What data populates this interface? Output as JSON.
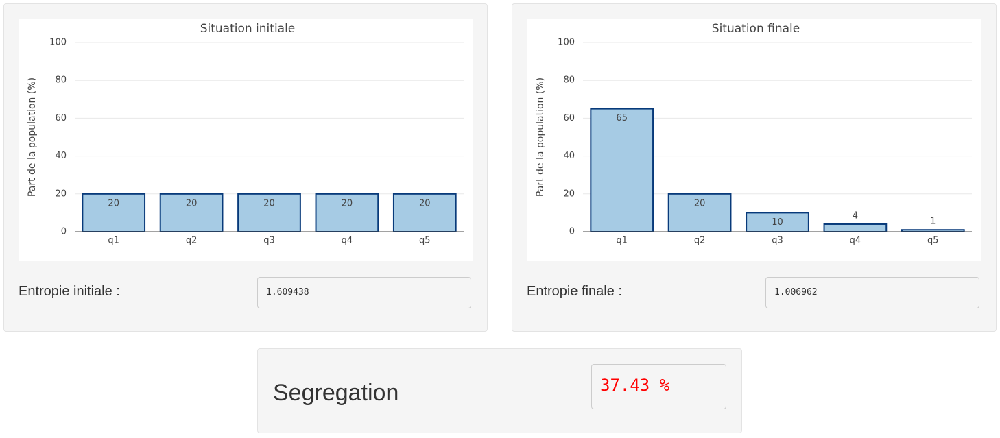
{
  "chart_data": [
    {
      "type": "bar",
      "title": "Situation initiale",
      "ylabel": "Part de la population (%)",
      "xlabel": "",
      "categories": [
        "q1",
        "q2",
        "q3",
        "q4",
        "q5"
      ],
      "values": [
        20,
        20,
        20,
        20,
        20
      ],
      "data_labels": [
        "20",
        "20",
        "20",
        "20",
        "20"
      ],
      "ylim": [
        0,
        100
      ],
      "yticks": [
        "0",
        "20",
        "40",
        "60",
        "80",
        "100"
      ],
      "grid": true,
      "bar_fill": "#a6cbe4",
      "bar_stroke": "#083a7a"
    },
    {
      "type": "bar",
      "title": "Situation finale",
      "ylabel": "Part de la population (%)",
      "xlabel": "",
      "categories": [
        "q1",
        "q2",
        "q3",
        "q4",
        "q5"
      ],
      "values": [
        65,
        20,
        10,
        4,
        1
      ],
      "data_labels": [
        "65",
        "20",
        "10",
        "4",
        "1"
      ],
      "ylim": [
        0,
        100
      ],
      "yticks": [
        "0",
        "20",
        "40",
        "60",
        "80",
        "100"
      ],
      "grid": true,
      "bar_fill": "#a6cbe4",
      "bar_stroke": "#083a7a"
    }
  ],
  "entropy_initial": {
    "label": "Entropie initiale :",
    "value": "1.609438"
  },
  "entropy_final": {
    "label": "Entropie finale :",
    "value": "1.006962"
  },
  "segregation": {
    "label": "Segregation",
    "value": "37.43 %",
    "value_color": "#ff0000"
  }
}
